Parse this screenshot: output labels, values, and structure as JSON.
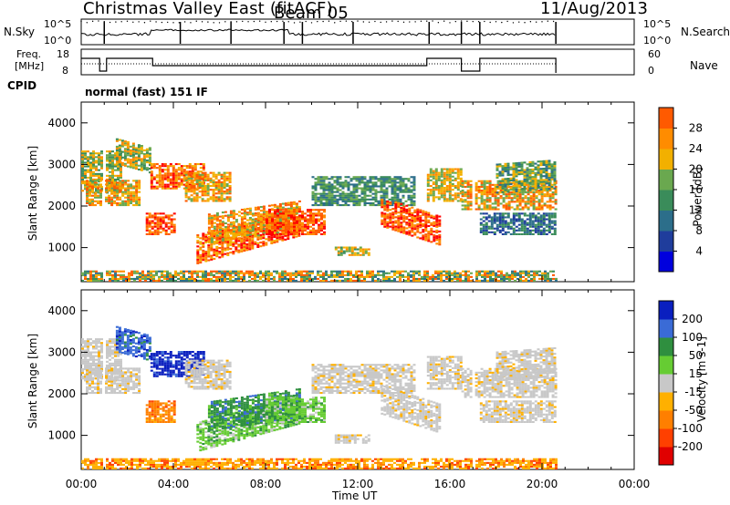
{
  "header": {
    "station": "Christmas Valley East (fitACF)",
    "beam": "Beam 05",
    "date": "11/Aug/2013"
  },
  "params": {
    "nsky_label": "N.Sky",
    "nsearch_label": "N.Search",
    "noise_ticks": [
      "10^5",
      "10^0"
    ],
    "freq_label_1": "Freq.",
    "freq_label_2": "[MHz]",
    "freq_ticks": [
      "18",
      "8"
    ],
    "nave_label": "Nave",
    "nave_ticks": [
      "60",
      "0"
    ],
    "cpid_label": "CPID",
    "cpid_value": "normal (fast) 151 IF"
  },
  "colors": {
    "power_scale": [
      "#0000dd",
      "#1f3d9c",
      "#2c6e8a",
      "#3a8c5a",
      "#6aa84f",
      "#f2b000",
      "#ff8c00",
      "#ff5a00",
      "#ff0000"
    ],
    "velocity_scale": [
      "#e00000",
      "#ff4000",
      "#ff7f00",
      "#ffb000",
      "#c8c8c8",
      "#c8c8c8",
      "#66cc33",
      "#2f8f3f",
      "#3a6bd6",
      "#0a1fbf"
    ]
  },
  "chart_data": [
    {
      "type": "heatmap",
      "name": "power",
      "ylabel": "Slant Range [km]",
      "xlabel": "Time UT",
      "x_ticks": [
        "00:00",
        "04:00",
        "08:00",
        "12:00",
        "16:00",
        "20:00",
        "00:00"
      ],
      "y_ticks": [
        1000,
        2000,
        3000,
        4000
      ],
      "ylim": [
        180,
        4500
      ],
      "xlim_hours": [
        0,
        24
      ],
      "colorbar_label": "Power [dB]",
      "colorbar_ticks": [
        4,
        8,
        12,
        16,
        20,
        24,
        28
      ]
    },
    {
      "type": "heatmap",
      "name": "velocity",
      "ylabel": "Slant Range [km]",
      "xlabel": "Time UT",
      "x_ticks": [
        "00:00",
        "04:00",
        "08:00",
        "12:00",
        "16:00",
        "20:00",
        "00:00"
      ],
      "y_ticks": [
        1000,
        2000,
        3000,
        4000
      ],
      "ylim": [
        180,
        4500
      ],
      "xlim_hours": [
        0,
        24
      ],
      "colorbar_label": "Velocity [m s-1]",
      "colorbar_ticks": [
        -200,
        -100,
        -50,
        -15,
        15,
        50,
        100,
        200
      ]
    }
  ]
}
